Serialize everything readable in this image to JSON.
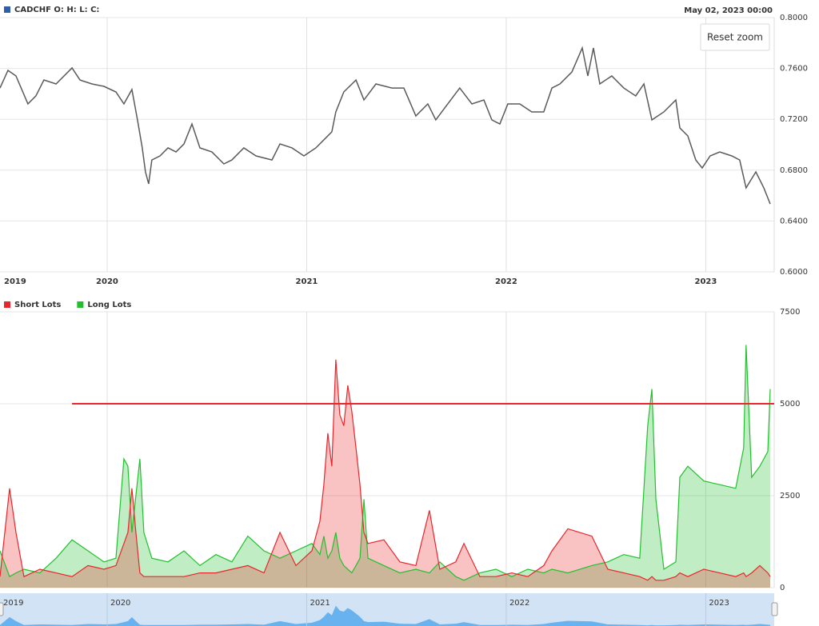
{
  "ui": {
    "reset_zoom": "Reset zoom"
  },
  "chart_data": [
    {
      "type": "line",
      "subtitle": "May 02, 2023 00:00",
      "xlim": [
        2019.463,
        2023.343
      ],
      "xticks": [
        2019,
        2020,
        2021,
        2022,
        2023
      ],
      "ylim": [
        0.6,
        0.8
      ],
      "yticks": [
        {
          "value": 0.6,
          "label": "0.6000"
        },
        {
          "value": 0.64,
          "label": "0.6400"
        },
        {
          "value": 0.68,
          "label": "0.6800"
        },
        {
          "value": 0.72,
          "label": "0.7200"
        },
        {
          "value": 0.76,
          "label": "0.7600"
        },
        {
          "value": 0.8,
          "label": "0.8000"
        }
      ],
      "grid": true,
      "x": [
        2019.463,
        2019.503,
        2019.543,
        2019.603,
        2019.643,
        2019.683,
        2019.744,
        2019.824,
        2019.864,
        2019.924,
        2019.984,
        2020.044,
        2020.084,
        2020.124,
        2020.152,
        2020.176,
        2020.192,
        2020.208,
        2020.224,
        2020.265,
        2020.305,
        2020.345,
        2020.385,
        2020.425,
        2020.465,
        2020.525,
        2020.585,
        2020.625,
        2020.685,
        2020.746,
        2020.826,
        2020.866,
        2020.926,
        2020.986,
        2021.046,
        2021.086,
        2021.126,
        2021.146,
        2021.186,
        2021.247,
        2021.287,
        2021.347,
        2021.427,
        2021.487,
        2021.547,
        2021.607,
        2021.647,
        2021.707,
        2021.767,
        2021.828,
        2021.888,
        2021.928,
        2021.968,
        2022.008,
        2022.068,
        2022.128,
        2022.188,
        2022.229,
        2022.269,
        2022.329,
        2022.381,
        2022.409,
        2022.437,
        2022.469,
        2022.529,
        2022.589,
        2022.649,
        2022.69,
        2022.73,
        2022.79,
        2022.85,
        2022.87,
        2022.91,
        2022.95,
        2022.982,
        2023.022,
        2023.07,
        2023.13,
        2023.17,
        2023.202,
        2023.251,
        2023.291,
        2023.323
      ],
      "series": [
        {
          "name": "CADCHF O: H: L: C:",
          "color": "#5a5a5a",
          "values": [
            0.7446,
            0.7585,
            0.7541,
            0.7321,
            0.7384,
            0.7509,
            0.7478,
            0.7604,
            0.7509,
            0.7478,
            0.7459,
            0.7415,
            0.7321,
            0.7434,
            0.7195,
            0.6975,
            0.6786,
            0.6692,
            0.688,
            0.6912,
            0.6975,
            0.6943,
            0.7006,
            0.7163,
            0.6975,
            0.6943,
            0.6849,
            0.688,
            0.6975,
            0.6912,
            0.688,
            0.7006,
            0.6975,
            0.6912,
            0.6975,
            0.7038,
            0.7101,
            0.7258,
            0.7415,
            0.7509,
            0.7352,
            0.7478,
            0.7446,
            0.7446,
            0.7226,
            0.7321,
            0.7195,
            0.7321,
            0.7446,
            0.7321,
            0.7352,
            0.7195,
            0.7163,
            0.7321,
            0.7321,
            0.7258,
            0.7258,
            0.7446,
            0.7478,
            0.7572,
            0.7761,
            0.7541,
            0.7761,
            0.7478,
            0.7541,
            0.7446,
            0.7384,
            0.7478,
            0.7195,
            0.7258,
            0.7352,
            0.7132,
            0.7069,
            0.688,
            0.6817,
            0.6912,
            0.6943,
            0.6912,
            0.688,
            0.666,
            0.6786,
            0.666,
            0.6534
          ]
        }
      ]
    },
    {
      "type": "area",
      "xlim": [
        2019.463,
        2023.343
      ],
      "xticks": [
        2019,
        2020,
        2021,
        2022,
        2023
      ],
      "ylim": [
        0,
        7500
      ],
      "yticks": [
        0,
        2500,
        5000,
        7500
      ],
      "grid": true,
      "plot_lines": [
        {
          "value": 5000,
          "from": 2019.824,
          "color": "#e8262b"
        }
      ],
      "navigator_color": "#4ea6ee",
      "x": [
        2019.463,
        2019.511,
        2019.543,
        2019.583,
        2019.663,
        2019.744,
        2019.824,
        2019.904,
        2019.984,
        2020.044,
        2020.084,
        2020.104,
        2020.124,
        2020.144,
        2020.164,
        2020.184,
        2020.224,
        2020.305,
        2020.385,
        2020.465,
        2020.545,
        2020.625,
        2020.705,
        2020.786,
        2020.866,
        2020.946,
        2021.026,
        2021.066,
        2021.086,
        2021.106,
        2021.126,
        2021.146,
        2021.166,
        2021.186,
        2021.206,
        2021.226,
        2021.247,
        2021.267,
        2021.287,
        2021.307,
        2021.387,
        2021.467,
        2021.547,
        2021.615,
        2021.667,
        2021.747,
        2021.788,
        2021.868,
        2021.948,
        2022.028,
        2022.108,
        2022.188,
        2022.229,
        2022.309,
        2022.429,
        2022.509,
        2022.589,
        2022.669,
        2022.709,
        2022.73,
        2022.75,
        2022.79,
        2022.85,
        2022.87,
        2022.91,
        2022.99,
        2023.07,
        2023.15,
        2023.19,
        2023.202,
        2023.23,
        2023.271,
        2023.311,
        2023.323
      ],
      "series": [
        {
          "name": "Short Lots",
          "color": "#e8262b",
          "values": [
            300,
            2700,
            1500,
            300,
            500,
            400,
            300,
            600,
            500,
            600,
            1200,
            1500,
            2700,
            1500,
            400,
            300,
            300,
            300,
            300,
            400,
            400,
            500,
            600,
            400,
            1500,
            600,
            1000,
            1800,
            2800,
            4200,
            3300,
            6200,
            4700,
            4400,
            5500,
            4800,
            3800,
            2800,
            1500,
            1200,
            1300,
            700,
            600,
            2100,
            500,
            700,
            1200,
            300,
            300,
            400,
            300,
            600,
            1000,
            1600,
            1400,
            500,
            400,
            300,
            200,
            300,
            200,
            200,
            300,
            400,
            300,
            500,
            400,
            300,
            400,
            300,
            400,
            600,
            400,
            300
          ]
        },
        {
          "name": "Long Lots",
          "color": "#22c02e",
          "values": [
            1000,
            300,
            400,
            500,
            400,
            800,
            1300,
            1000,
            700,
            800,
            3500,
            3300,
            1500,
            2500,
            3500,
            1500,
            800,
            700,
            1000,
            600,
            900,
            700,
            1400,
            1000,
            800,
            1000,
            1200,
            900,
            1400,
            800,
            1000,
            1500,
            800,
            600,
            500,
            400,
            600,
            800,
            2400,
            800,
            600,
            400,
            500,
            400,
            700,
            300,
            200,
            400,
            500,
            300,
            500,
            400,
            500,
            400,
            600,
            700,
            900,
            800,
            4400,
            5400,
            2400,
            500,
            700,
            3000,
            3300,
            2900,
            2800,
            2700,
            3800,
            6600,
            3000,
            3300,
            3700,
            5400
          ]
        }
      ]
    }
  ]
}
